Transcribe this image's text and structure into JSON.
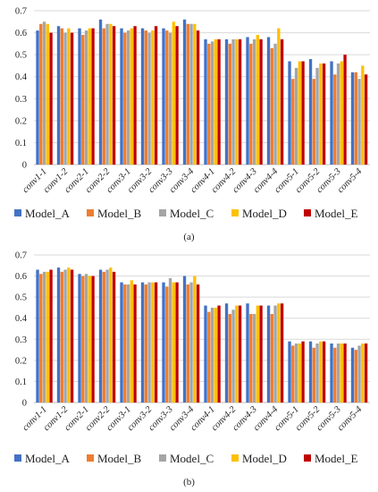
{
  "colors": {
    "Model_A": "#4472C4",
    "Model_B": "#ED7D31",
    "Model_C": "#A5A5A5",
    "Model_D": "#FFC000",
    "Model_E": "#C00000"
  },
  "chart_data": [
    {
      "type": "bar",
      "caption": "(a)",
      "categories": [
        "conv1-1",
        "conv1-2",
        "conv2-1",
        "conv2-2",
        "conv3-1",
        "conv3-2",
        "conv3-3",
        "conv3-4",
        "conv4-1",
        "conv4-2",
        "conv4-3",
        "conv4-4",
        "conv5-1",
        "conv5-2",
        "conv5-3",
        "conv5-4"
      ],
      "yticks": [
        "0",
        "0.1",
        "0.2",
        "0.3",
        "0.4",
        "0.5",
        "0.6",
        "0.7"
      ],
      "ylim": [
        0,
        0.7
      ],
      "grid": true,
      "legend": "bottom",
      "series": [
        {
          "name": "Model_A",
          "values": [
            0.61,
            0.63,
            0.62,
            0.66,
            0.62,
            0.62,
            0.62,
            0.66,
            0.57,
            0.57,
            0.58,
            0.58,
            0.47,
            0.48,
            0.47,
            0.42
          ]
        },
        {
          "name": "Model_B",
          "values": [
            0.64,
            0.62,
            0.59,
            0.62,
            0.6,
            0.61,
            0.61,
            0.64,
            0.55,
            0.55,
            0.55,
            0.53,
            0.39,
            0.39,
            0.41,
            0.42
          ]
        },
        {
          "name": "Model_C",
          "values": [
            0.65,
            0.6,
            0.61,
            0.64,
            0.61,
            0.6,
            0.6,
            0.64,
            0.56,
            0.57,
            0.57,
            0.55,
            0.44,
            0.44,
            0.46,
            0.39
          ]
        },
        {
          "name": "Model_D",
          "values": [
            0.64,
            0.62,
            0.62,
            0.64,
            0.62,
            0.61,
            0.65,
            0.64,
            0.57,
            0.57,
            0.59,
            0.62,
            0.47,
            0.46,
            0.47,
            0.45
          ]
        },
        {
          "name": "Model_E",
          "values": [
            0.6,
            0.6,
            0.62,
            0.63,
            0.63,
            0.63,
            0.63,
            0.61,
            0.57,
            0.57,
            0.57,
            0.57,
            0.47,
            0.46,
            0.5,
            0.41
          ]
        }
      ]
    },
    {
      "type": "bar",
      "caption": "(b)",
      "categories": [
        "conv1-1",
        "conv1-2",
        "conv2-1",
        "conv2-2",
        "conv3-1",
        "conv3-2",
        "conv3-3",
        "conv3-4",
        "conv4-1",
        "conv4-2",
        "conv4-3",
        "conv4-4",
        "conv5-1",
        "conv5-2",
        "conv5-3",
        "conv5-4"
      ],
      "yticks": [
        "0",
        "0.1",
        "0.2",
        "0.3",
        "0.4",
        "0.5",
        "0.6",
        "0.7"
      ],
      "ylim": [
        0,
        0.7
      ],
      "grid": true,
      "legend": "bottom",
      "series": [
        {
          "name": "Model_A",
          "values": [
            0.63,
            0.64,
            0.61,
            0.63,
            0.57,
            0.57,
            0.57,
            0.6,
            0.46,
            0.47,
            0.47,
            0.46,
            0.29,
            0.29,
            0.28,
            0.26
          ]
        },
        {
          "name": "Model_B",
          "values": [
            0.61,
            0.62,
            0.6,
            0.62,
            0.56,
            0.56,
            0.55,
            0.56,
            0.43,
            0.42,
            0.42,
            0.42,
            0.27,
            0.26,
            0.26,
            0.25
          ]
        },
        {
          "name": "Model_C",
          "values": [
            0.62,
            0.63,
            0.61,
            0.63,
            0.56,
            0.57,
            0.59,
            0.57,
            0.45,
            0.44,
            0.42,
            0.46,
            0.28,
            0.28,
            0.28,
            0.27
          ]
        },
        {
          "name": "Model_D",
          "values": [
            0.62,
            0.64,
            0.6,
            0.64,
            0.58,
            0.57,
            0.57,
            0.6,
            0.45,
            0.46,
            0.46,
            0.47,
            0.28,
            0.29,
            0.28,
            0.28
          ]
        },
        {
          "name": "Model_E",
          "values": [
            0.63,
            0.63,
            0.6,
            0.62,
            0.56,
            0.57,
            0.57,
            0.56,
            0.46,
            0.46,
            0.46,
            0.47,
            0.29,
            0.29,
            0.28,
            0.28
          ]
        }
      ]
    }
  ]
}
